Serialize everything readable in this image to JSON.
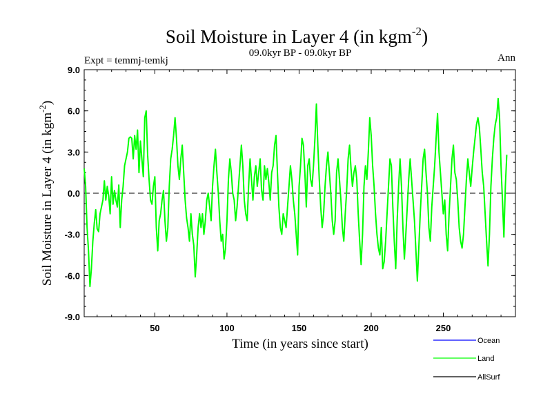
{
  "chart_data": {
    "type": "line",
    "title": "Soil Moisture in Layer 4 (in kgm",
    "title_superscript": "-2",
    "title_close": ")",
    "subtitle_left": "Expt = temmj-temkj",
    "subtitle_center": "09.0kyr BP - 09.0kyr BP",
    "subtitle_right": "Ann",
    "xlabel": "Time (in years since start)",
    "ylabel": "Soil Moisture in Layer 4 (in kgm",
    "ylabel_superscript": "-2",
    "ylabel_close": ")",
    "xlim": [
      1,
      300
    ],
    "ylim": [
      -9,
      9
    ],
    "x_ticks": [
      50,
      100,
      150,
      200,
      250
    ],
    "y_ticks": [
      -9,
      -6,
      -3,
      0,
      3,
      6,
      9
    ],
    "y_tick_labels": [
      "-9.0",
      "-6.0",
      "-3.0",
      "0.0",
      "3.0",
      "6.0",
      "9.0"
    ],
    "zero_line": true,
    "grid": false,
    "legend_position": "bottom-right",
    "series": [
      {
        "name": "Ocean",
        "color": "#0000ff",
        "values": []
      },
      {
        "name": "Land",
        "color": "#00ff00",
        "x_start": 1,
        "x_step": 1,
        "values": [
          1.8,
          0.5,
          -2.5,
          -4.2,
          -6.8,
          -5.5,
          -3.5,
          -2.2,
          -1.2,
          -2.6,
          -2.8,
          -1.5,
          -1.0,
          -0.5,
          0.9,
          -0.5,
          0.5,
          -0.2,
          -1.5,
          1.2,
          -0.8,
          0.2,
          -0.5,
          -1.0,
          0.6,
          -2.5,
          -0.5,
          0.5,
          2.0,
          2.5,
          3.0,
          4.0,
          4.1,
          4.0,
          2.5,
          4.2,
          3.2,
          4.6,
          1.5,
          3.8,
          2.5,
          1.2,
          5.5,
          6.0,
          2.8,
          1.0,
          -0.5,
          -0.8,
          0.5,
          1.2,
          -2.5,
          -4.2,
          -2.0,
          -1.5,
          -0.5,
          0.2,
          -2.0,
          -3.5,
          -2.5,
          0.5,
          2.5,
          3.2,
          4.2,
          5.5,
          4.0,
          2.0,
          1.0,
          2.5,
          3.5,
          1.5,
          -0.5,
          -1.8,
          -2.5,
          -3.5,
          -1.5,
          -3.0,
          -3.8,
          -6.1,
          -4.5,
          -2.5,
          -1.5,
          -2.5,
          -1.5,
          -3.0,
          -2.0,
          -0.5,
          0.0,
          -1.0,
          -2.0,
          0.5,
          2.0,
          3.2,
          1.5,
          0.0,
          -2.0,
          -3.5,
          -3.0,
          -4.8,
          -4.0,
          -2.0,
          1.0,
          2.5,
          1.5,
          0.0,
          -0.5,
          -2.0,
          -1.0,
          0.5,
          2.0,
          3.5,
          2.0,
          -0.5,
          -1.5,
          -2.0,
          0.5,
          2.5,
          1.0,
          -0.5,
          1.2,
          2.0,
          0.5,
          1.5,
          2.5,
          0.2,
          -0.5,
          2.0,
          1.0,
          1.8,
          0.8,
          -0.5,
          1.5,
          2.0,
          3.5,
          4.2,
          1.5,
          -1.0,
          -2.5,
          -3.0,
          -1.5,
          -2.0,
          -2.5,
          -1.0,
          0.5,
          2.0,
          1.0,
          -0.5,
          -1.5,
          -3.0,
          -4.5,
          0.5,
          2.0,
          4.0,
          3.5,
          1.5,
          -1.0,
          2.0,
          2.5,
          1.0,
          0.5,
          2.0,
          4.0,
          6.5,
          3.5,
          1.0,
          -1.0,
          -2.5,
          -1.5,
          0.5,
          2.0,
          3.0,
          1.5,
          0.0,
          -2.0,
          -3.0,
          -2.0,
          1.5,
          2.5,
          1.0,
          -0.5,
          -2.5,
          -3.5,
          -1.5,
          0.2,
          2.5,
          3.5,
          1.8,
          0.5,
          1.5,
          2.0,
          1.0,
          -1.5,
          -3.5,
          -5.2,
          -3.0,
          0.5,
          2.0,
          1.0,
          3.0,
          5.5,
          4.2,
          2.0,
          0.5,
          -1.5,
          -3.0,
          -4.0,
          -4.5,
          -2.5,
          -5.5,
          -5.0,
          -3.5,
          -1.5,
          0.5,
          2.5,
          2.0,
          -1.0,
          -3.5,
          -5.5,
          -2.0,
          0.5,
          2.5,
          0.5,
          -2.5,
          -4.8,
          -3.0,
          -1.0,
          1.0,
          2.5,
          1.0,
          -0.5,
          -2.0,
          -4.2,
          -6.4,
          -4.0,
          -1.5,
          0.5,
          2.5,
          3.2,
          1.5,
          0.0,
          -2.5,
          -3.5,
          -1.0,
          0.5,
          2.0,
          4.0,
          5.8,
          3.0,
          1.5,
          0.0,
          -1.5,
          -0.5,
          -3.0,
          -4.2,
          -1.5,
          0.5,
          2.5,
          3.5,
          1.5,
          1.0,
          -0.5,
          -2.5,
          -3.5,
          -4.0,
          -3.0,
          -1.0,
          1.0,
          2.5,
          1.5,
          0.5,
          1.8,
          3.0,
          4.0,
          5.0,
          5.5,
          4.8,
          3.2,
          1.5,
          0.5,
          -1.5,
          -3.5,
          -5.3,
          -3.0,
          0.5,
          2.5,
          4.0,
          5.0,
          5.5,
          6.9,
          5.5,
          2.0,
          -0.5,
          -3.2,
          0.5,
          2.8
        ]
      },
      {
        "name": "AllSurf",
        "color": "#000000",
        "values": []
      }
    ]
  }
}
